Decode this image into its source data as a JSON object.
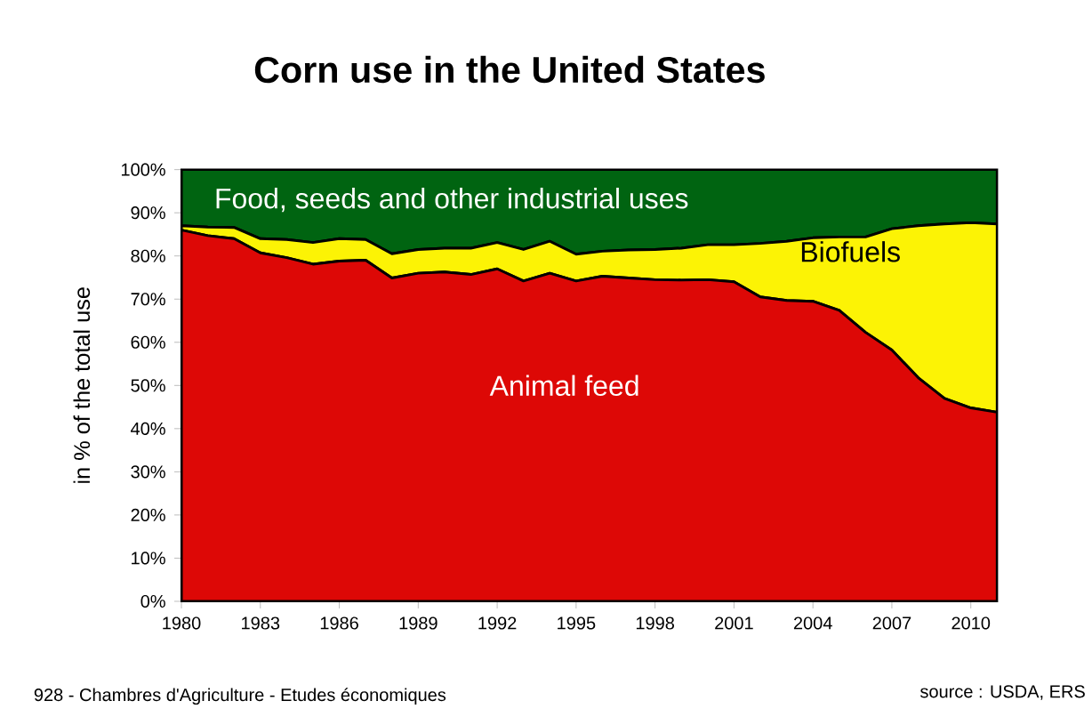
{
  "chart_data": {
    "type": "area",
    "stacked": true,
    "title": "Corn use in the United States",
    "ylabel": "in % of the total use",
    "x": [
      1980,
      1981,
      1982,
      1983,
      1984,
      1985,
      1986,
      1987,
      1988,
      1989,
      1990,
      1991,
      1992,
      1993,
      1994,
      1995,
      1996,
      1997,
      1998,
      1999,
      2000,
      2001,
      2002,
      2003,
      2004,
      2005,
      2006,
      2007,
      2008,
      2009,
      2010,
      2011
    ],
    "series": [
      {
        "name": "Animal feed",
        "color": "#dd0806",
        "values": [
          86,
          84.7,
          84,
          80.7,
          79.6,
          78.1,
          78.8,
          79,
          74.9,
          76,
          76.3,
          75.7,
          77,
          74.2,
          76,
          74.2,
          75.3,
          74.9,
          74.5,
          74.4,
          74.5,
          74,
          70.5,
          69.7,
          69.5,
          67.4,
          62.3,
          58.2,
          51.8,
          47,
          44.8,
          43.8
        ]
      },
      {
        "name": "Biofuels",
        "color": "#fcf305",
        "values": [
          1,
          2,
          2.6,
          3.3,
          4.2,
          5,
          5.2,
          4.8,
          5.6,
          5.5,
          5.5,
          6.1,
          6.1,
          7.3,
          7.4,
          6.2,
          5.8,
          6.5,
          7,
          7.4,
          8.1,
          8.6,
          12.4,
          13.7,
          14.7,
          17,
          22.1,
          28.1,
          35.2,
          40.4,
          42.9,
          43.6
        ]
      },
      {
        "name": "Food, seeds and other industrial uses",
        "color": "#006411",
        "values": [
          13,
          13.3,
          13.4,
          16,
          16.2,
          16.9,
          16,
          16.2,
          19.5,
          18.5,
          18.2,
          18.2,
          16.9,
          18.5,
          16.6,
          19.6,
          18.9,
          18.6,
          18.5,
          18.2,
          17.4,
          17.4,
          17.1,
          16.6,
          15.8,
          15.6,
          15.6,
          13.7,
          13,
          12.6,
          12.3,
          12.6
        ]
      }
    ],
    "xlim": [
      1980,
      2011
    ],
    "xticks": [
      1980,
      1983,
      1986,
      1989,
      1992,
      1995,
      1998,
      2001,
      2004,
      2007,
      2010
    ],
    "ylim": [
      0,
      100
    ],
    "yticks": [
      {
        "value": 0,
        "label": "0%"
      },
      {
        "value": 10,
        "label": "10%"
      },
      {
        "value": 20,
        "label": "20%"
      },
      {
        "value": 30,
        "label": "30%"
      },
      {
        "value": 40,
        "label": "40%"
      },
      {
        "value": 50,
        "label": "50%"
      },
      {
        "value": 60,
        "label": "60%"
      },
      {
        "value": 70,
        "label": "70%"
      },
      {
        "value": 80,
        "label": "80%"
      },
      {
        "value": 90,
        "label": "90%"
      },
      {
        "value": 100,
        "label": "100%"
      }
    ],
    "annotations": [
      "928 - Chambres d'Agriculture - Etudes économiques",
      "source : USDA, ERS"
    ]
  }
}
